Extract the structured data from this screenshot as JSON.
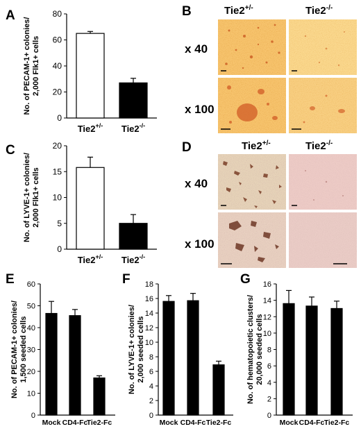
{
  "panel_labels": {
    "a": "A",
    "b": "B",
    "c": "C",
    "d": "D",
    "e": "E",
    "f": "F",
    "g": "G"
  },
  "micrographs": {
    "col_het": "Tie2",
    "col_het_sup": "+/-",
    "col_ko": "Tie2",
    "col_ko_sup": "-/-",
    "row1": "x 40",
    "row2": "x 100"
  },
  "chart_data": [
    {
      "panel": "A",
      "type": "bar",
      "ylabel_line1": "No. of PECAM-1+ colonies/",
      "ylabel_line2": "2,000 Flk1+ cells",
      "ylim": [
        0,
        80
      ],
      "yticks": [
        "0",
        "20",
        "40",
        "60",
        "80"
      ],
      "categories": [
        {
          "base": "Tie2",
          "sup": "+/-"
        },
        {
          "base": "Tie2",
          "sup": "-/-"
        }
      ],
      "values": [
        65,
        27
      ],
      "errors": [
        1.5,
        3.5
      ],
      "fills": [
        "#ffffff",
        "#000000"
      ]
    },
    {
      "panel": "C",
      "type": "bar",
      "ylabel_line1": "No. of LYVE-1+ colonies/",
      "ylabel_line2": "2,000 Flk1+ cells",
      "ylim": [
        0,
        20
      ],
      "yticks": [
        "0",
        "5",
        "10",
        "15",
        "20"
      ],
      "categories": [
        {
          "base": "Tie2",
          "sup": "+/-"
        },
        {
          "base": "Tie2",
          "sup": "-/-"
        }
      ],
      "values": [
        15.8,
        5.0
      ],
      "errors": [
        2.0,
        1.7
      ],
      "fills": [
        "#ffffff",
        "#000000"
      ]
    },
    {
      "panel": "E",
      "type": "bar",
      "ylabel_line1": "No. of PECAM-1+ colonies/",
      "ylabel_line2": "1,500 seeded cells",
      "ylim": [
        0,
        60
      ],
      "yticks": [
        "0",
        "10",
        "20",
        "30",
        "40",
        "50",
        "60"
      ],
      "categories": [
        "Mock",
        "CD4-Fc",
        "Tie2-Fc"
      ],
      "values": [
        46.5,
        45.5,
        17
      ],
      "errors": [
        5.5,
        2.8,
        1.0
      ]
    },
    {
      "panel": "F",
      "type": "bar",
      "ylabel_line1": "No. of LYVE-1+ colonies/",
      "ylabel_line2": "2,000 seeded cells",
      "ylim": [
        0,
        18
      ],
      "yticks": [
        "0",
        "2",
        "4",
        "6",
        "8",
        "10",
        "12",
        "14",
        "16",
        "18"
      ],
      "categories": [
        "Mock",
        "CD4-Fc",
        "Tie2-Fc"
      ],
      "values": [
        15.6,
        15.7,
        6.9
      ],
      "errors": [
        0.8,
        1.0,
        0.5
      ]
    },
    {
      "panel": "G",
      "type": "bar",
      "ylabel_line1": "No. of hematopoietic clusters/",
      "ylabel_line2": "20,000 seeded cells",
      "ylim": [
        0,
        16
      ],
      "yticks": [
        "0",
        "2",
        "4",
        "6",
        "8",
        "10",
        "12",
        "14",
        "16"
      ],
      "categories": [
        "Mock",
        "CD4-Fc",
        "Tie2-Fc"
      ],
      "values": [
        13.6,
        13.3,
        13.0
      ],
      "errors": [
        1.6,
        1.1,
        0.9
      ]
    }
  ]
}
